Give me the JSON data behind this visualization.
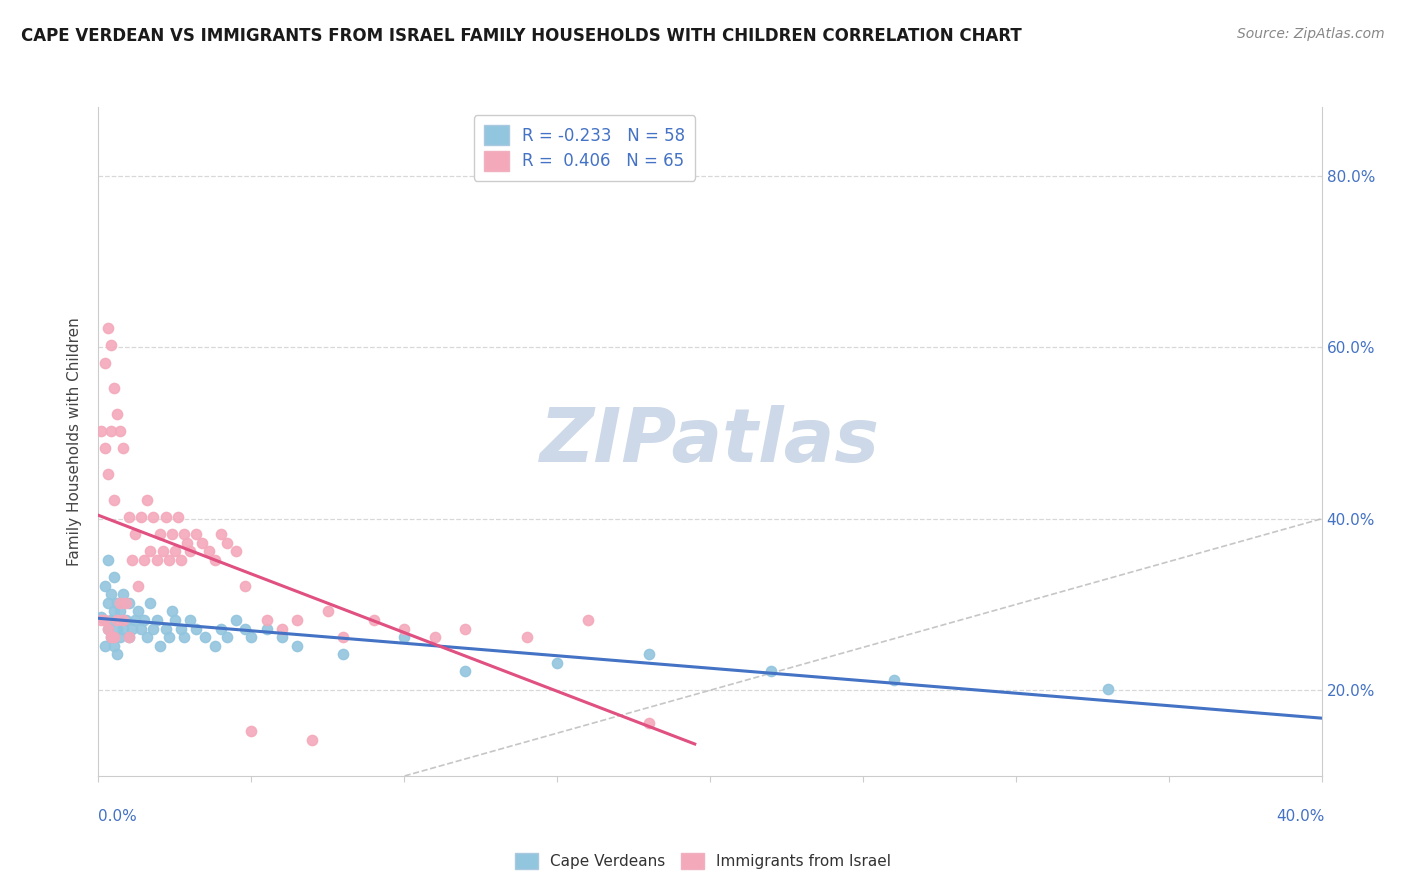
{
  "title": "CAPE VERDEAN VS IMMIGRANTS FROM ISRAEL FAMILY HOUSEHOLDS WITH CHILDREN CORRELATION CHART",
  "source": "Source: ZipAtlas.com",
  "ylabel_label": "Family Households with Children",
  "legend_label_blue": "Cape Verdeans",
  "legend_label_pink": "Immigrants from Israel",
  "R_blue": -0.233,
  "N_blue": 58,
  "R_pink": 0.406,
  "N_pink": 65,
  "blue_color": "#92c5de",
  "pink_color": "#f4a9bb",
  "trend_blue": "#4472c4",
  "trend_pink": "#e05080",
  "diagonal_color": "#b8b8b8",
  "watermark_color": "#cdd9e8",
  "xlim": [
    0.0,
    0.4
  ],
  "ylim": [
    0.1,
    0.88
  ],
  "blue_scatter_x": [
    0.001,
    0.002,
    0.002,
    0.003,
    0.003,
    0.003,
    0.004,
    0.004,
    0.004,
    0.005,
    0.005,
    0.005,
    0.006,
    0.006,
    0.006,
    0.007,
    0.007,
    0.008,
    0.008,
    0.009,
    0.01,
    0.01,
    0.011,
    0.012,
    0.013,
    0.014,
    0.015,
    0.016,
    0.017,
    0.018,
    0.019,
    0.02,
    0.022,
    0.023,
    0.024,
    0.025,
    0.027,
    0.028,
    0.03,
    0.032,
    0.035,
    0.038,
    0.04,
    0.042,
    0.045,
    0.048,
    0.05,
    0.055,
    0.06,
    0.065,
    0.08,
    0.1,
    0.12,
    0.15,
    0.18,
    0.22,
    0.26,
    0.33
  ],
  "blue_scatter_y": [
    0.285,
    0.252,
    0.322,
    0.272,
    0.302,
    0.352,
    0.262,
    0.282,
    0.312,
    0.252,
    0.292,
    0.332,
    0.242,
    0.272,
    0.302,
    0.262,
    0.292,
    0.272,
    0.312,
    0.282,
    0.262,
    0.302,
    0.272,
    0.282,
    0.292,
    0.272,
    0.282,
    0.262,
    0.302,
    0.272,
    0.282,
    0.252,
    0.272,
    0.262,
    0.292,
    0.282,
    0.272,
    0.262,
    0.282,
    0.272,
    0.262,
    0.252,
    0.272,
    0.262,
    0.282,
    0.272,
    0.262,
    0.272,
    0.262,
    0.252,
    0.242,
    0.262,
    0.222,
    0.232,
    0.242,
    0.222,
    0.212,
    0.202
  ],
  "pink_scatter_x": [
    0.001,
    0.001,
    0.002,
    0.002,
    0.002,
    0.003,
    0.003,
    0.003,
    0.004,
    0.004,
    0.004,
    0.005,
    0.005,
    0.005,
    0.006,
    0.006,
    0.007,
    0.007,
    0.008,
    0.008,
    0.009,
    0.01,
    0.01,
    0.011,
    0.012,
    0.013,
    0.014,
    0.015,
    0.016,
    0.017,
    0.018,
    0.019,
    0.02,
    0.021,
    0.022,
    0.023,
    0.024,
    0.025,
    0.026,
    0.027,
    0.028,
    0.029,
    0.03,
    0.032,
    0.034,
    0.036,
    0.038,
    0.04,
    0.042,
    0.045,
    0.048,
    0.05,
    0.055,
    0.06,
    0.065,
    0.07,
    0.075,
    0.08,
    0.09,
    0.1,
    0.11,
    0.12,
    0.14,
    0.16,
    0.18
  ],
  "pink_scatter_y": [
    0.282,
    0.502,
    0.282,
    0.482,
    0.582,
    0.272,
    0.452,
    0.622,
    0.262,
    0.502,
    0.602,
    0.262,
    0.422,
    0.552,
    0.282,
    0.522,
    0.302,
    0.502,
    0.282,
    0.482,
    0.302,
    0.262,
    0.402,
    0.352,
    0.382,
    0.322,
    0.402,
    0.352,
    0.422,
    0.362,
    0.402,
    0.352,
    0.382,
    0.362,
    0.402,
    0.352,
    0.382,
    0.362,
    0.402,
    0.352,
    0.382,
    0.372,
    0.362,
    0.382,
    0.372,
    0.362,
    0.352,
    0.382,
    0.372,
    0.362,
    0.322,
    0.152,
    0.282,
    0.272,
    0.282,
    0.142,
    0.292,
    0.262,
    0.282,
    0.272,
    0.262,
    0.272,
    0.262,
    0.282,
    0.162
  ],
  "background_color": "#ffffff",
  "grid_color": "#d8d8d8",
  "axis_color": "#cccccc",
  "tick_color": "#4472c4",
  "title_fontsize": 12,
  "source_fontsize": 10,
  "ytick_vals": [
    0.2,
    0.4,
    0.6,
    0.8
  ],
  "xtick_vals": [
    0.0,
    0.05,
    0.1,
    0.15,
    0.2,
    0.25,
    0.3,
    0.35,
    0.4
  ]
}
